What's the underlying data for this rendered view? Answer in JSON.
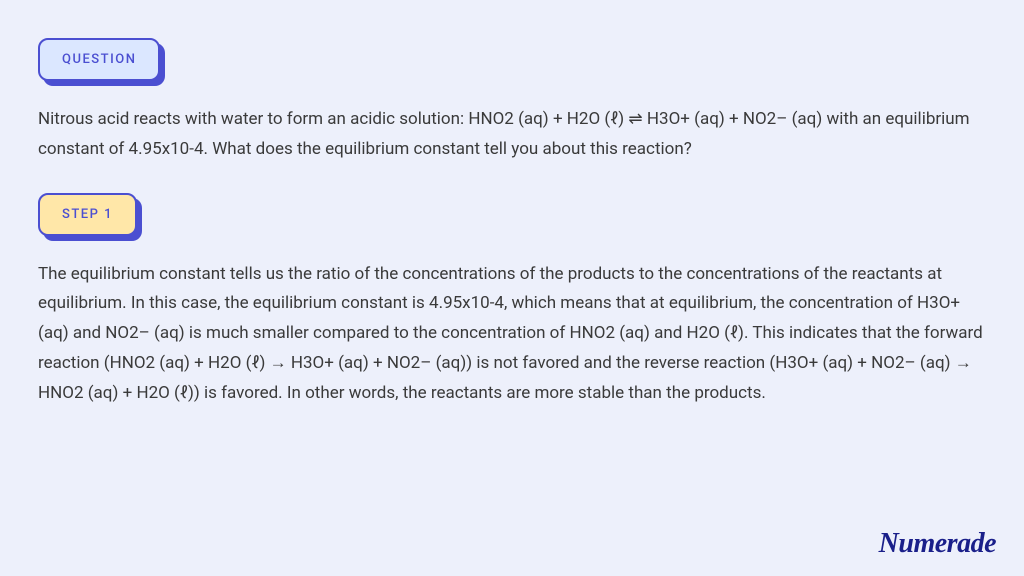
{
  "badges": {
    "question": {
      "label": "QUESTION",
      "bg_color": "#dbe7ff",
      "border_color": "#4b4fd1",
      "text_color": "#4b4fd1",
      "shadow_color": "#4b4fd1"
    },
    "step1": {
      "label": "STEP 1",
      "bg_color": "#ffe7a8",
      "border_color": "#4b4fd1",
      "text_color": "#4b4fd1",
      "shadow_color": "#4b4fd1"
    }
  },
  "question_text": "Nitrous acid reacts with water to form an acidic solution: HNO2 (aq) + H2O (ℓ) ⇌ H3O+ (aq) + NO2– (aq) with an equilibrium constant of 4.95x10-4. What does the equilibrium constant tell you about this reaction?",
  "step1_text": "The equilibrium constant tells us the ratio of the concentrations of the products to the concentrations of the reactants at equilibrium. In this case, the equilibrium constant is 4.95x10-4, which means that at equilibrium, the concentration of H3O+ (aq) and NO2– (aq) is much smaller compared to the concentration of HNO2 (aq) and H2O (ℓ). This indicates that the forward reaction (HNO2 (aq) + H2O (ℓ) → H3O+ (aq) + NO2– (aq)) is not favored and the reverse reaction (H3O+ (aq) + NO2– (aq) → HNO2 (aq) + H2O (ℓ)) is favored. In other words, the reactants are more stable than the products.",
  "brand": "Numerade",
  "page": {
    "background_color": "#edf0fb",
    "body_text_color": "#3a3a3a",
    "body_font_size": 17,
    "body_line_height": 1.75
  },
  "logo_style": {
    "color": "#1a1f8a",
    "font_size": 28,
    "font_style": "italic",
    "font_weight": 700
  }
}
